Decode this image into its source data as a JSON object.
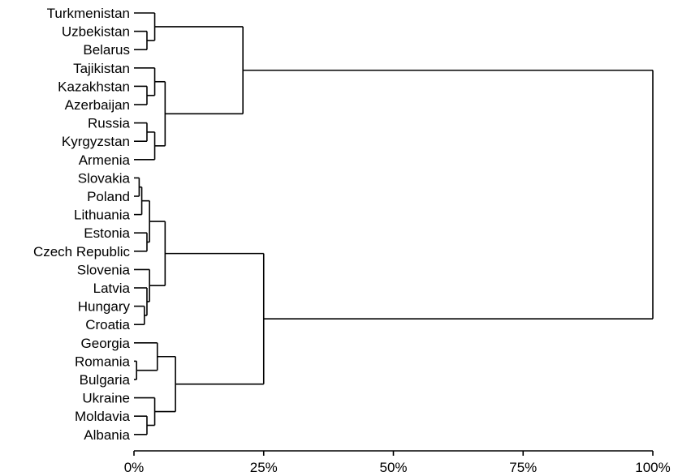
{
  "chart_data": {
    "type": "dendrogram",
    "orientation": "horizontal",
    "leaves": [
      "Turkmenistan",
      "Uzbekistan",
      "Belarus",
      "Tajikistan",
      "Kazakhstan",
      "Azerbaijan",
      "Russia",
      "Kyrgyzstan",
      "Armenia",
      "Slovakia",
      "Poland",
      "Lithuania",
      "Estonia",
      "Czech Republic",
      "Slovenia",
      "Latvia",
      "Hungary",
      "Croatia",
      "Georgia",
      "Romania",
      "Bulgaria",
      "Ukraine",
      "Moldavia",
      "Albania"
    ],
    "x_ticks": [
      "0%",
      "25%",
      "50%",
      "75%",
      "100%"
    ],
    "xlim": [
      0,
      100
    ],
    "merges": [
      {
        "id": "uz_be",
        "children": [
          "Uzbekistan",
          "Belarus"
        ],
        "height": 2.5
      },
      {
        "id": "g1",
        "children": [
          "Turkmenistan",
          "uz_be"
        ],
        "height": 4
      },
      {
        "id": "ka_az",
        "children": [
          "Kazakhstan",
          "Azerbaijan"
        ],
        "height": 2.5
      },
      {
        "id": "ta_ka",
        "children": [
          "Tajikistan",
          "ka_az"
        ],
        "height": 4
      },
      {
        "id": "ru_ky",
        "children": [
          "Russia",
          "Kyrgyzstan"
        ],
        "height": 2.5
      },
      {
        "id": "ru_ar",
        "children": [
          "ru_ky",
          "Armenia"
        ],
        "height": 4
      },
      {
        "id": "g2",
        "children": [
          "ta_ka",
          "ru_ar"
        ],
        "height": 6
      },
      {
        "id": "g12",
        "children": [
          "g1",
          "g2"
        ],
        "height": 21
      },
      {
        "id": "sk_po",
        "children": [
          "Slovakia",
          "Poland"
        ],
        "height": 1
      },
      {
        "id": "sk_li",
        "children": [
          "sk_po",
          "Lithuania"
        ],
        "height": 1.5
      },
      {
        "id": "es_cz",
        "children": [
          "Estonia",
          "Czech Republic"
        ],
        "height": 2.5
      },
      {
        "id": "bal",
        "children": [
          "sk_li",
          "es_cz"
        ],
        "height": 3
      },
      {
        "id": "hu_cr",
        "children": [
          "Hungary",
          "Croatia"
        ],
        "height": 2
      },
      {
        "id": "la_hu",
        "children": [
          "Latvia",
          "hu_cr"
        ],
        "height": 2.5
      },
      {
        "id": "sl_la",
        "children": [
          "Slovenia",
          "la_hu"
        ],
        "height": 3
      },
      {
        "id": "g3",
        "children": [
          "bal",
          "sl_la"
        ],
        "height": 6
      },
      {
        "id": "ro_bu",
        "children": [
          "Romania",
          "Bulgaria"
        ],
        "height": 0.5
      },
      {
        "id": "ge_ro",
        "children": [
          "Georgia",
          "ro_bu"
        ],
        "height": 4.5
      },
      {
        "id": "mo_al",
        "children": [
          "Moldavia",
          "Albania"
        ],
        "height": 2.5
      },
      {
        "id": "uk_mo",
        "children": [
          "Ukraine",
          "mo_al"
        ],
        "height": 4
      },
      {
        "id": "g4",
        "children": [
          "ge_ro",
          "uk_mo"
        ],
        "height": 8
      },
      {
        "id": "g34",
        "children": [
          "g3",
          "g4"
        ],
        "height": 25
      },
      {
        "id": "root",
        "children": [
          "g12",
          "g34"
        ],
        "height": 100
      }
    ]
  }
}
